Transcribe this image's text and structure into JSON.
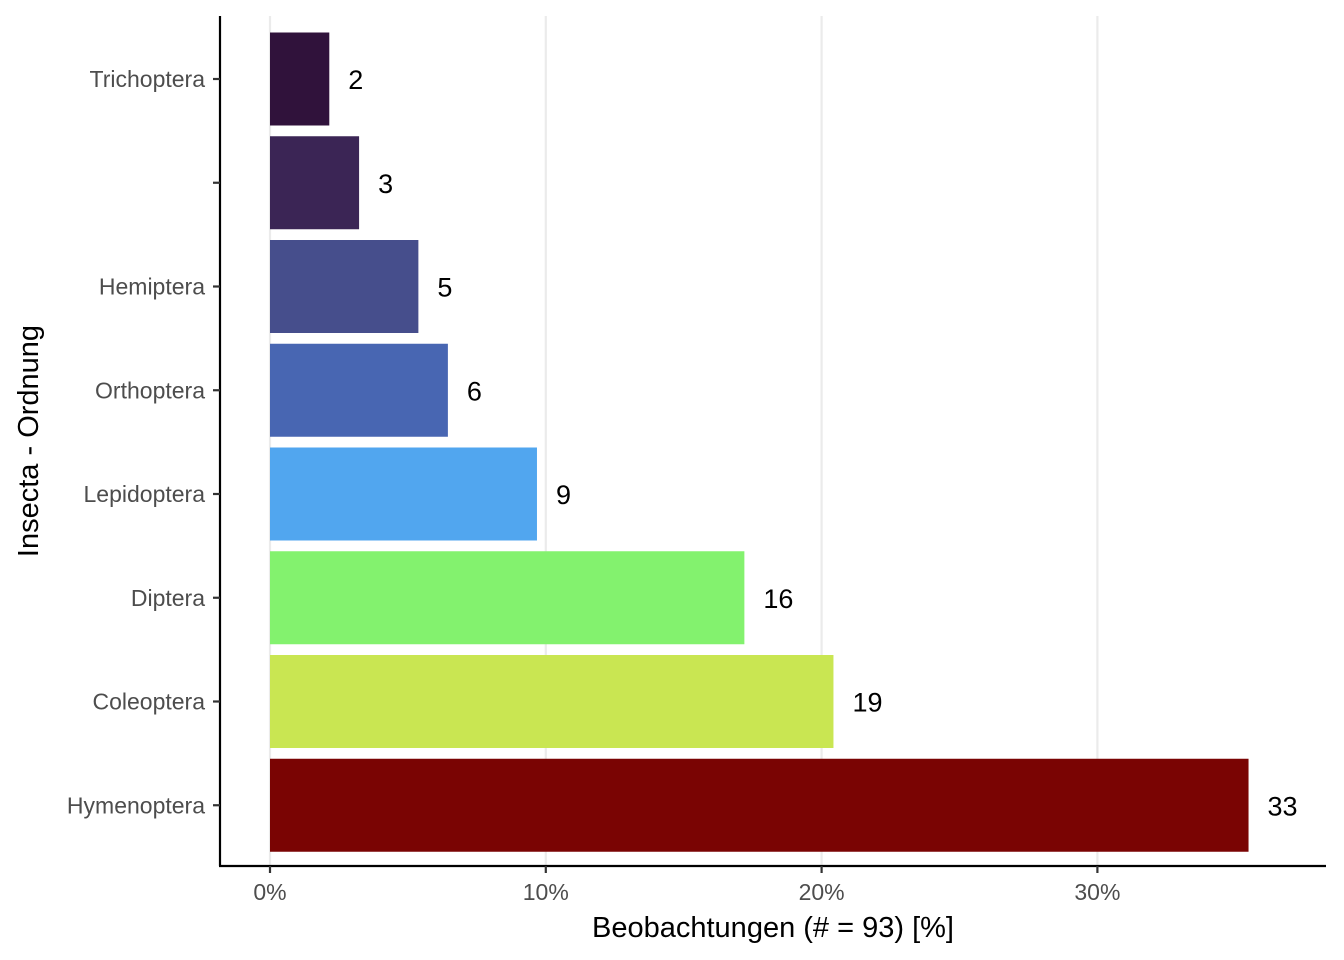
{
  "chart_data": {
    "type": "bar",
    "orientation": "horizontal",
    "categories": [
      "Trichoptera",
      "",
      "Hemiptera",
      "Orthoptera",
      "Lepidoptera",
      "Diptera",
      "Coleoptera",
      "Hymenoptera"
    ],
    "counts": [
      2,
      3,
      5,
      6,
      9,
      16,
      19,
      33
    ],
    "values_percent": [
      2.15,
      3.23,
      5.38,
      6.45,
      9.68,
      17.2,
      20.43,
      35.48
    ],
    "colors": [
      "#30123B",
      "#3B2555",
      "#464E8C",
      "#4866B2",
      "#51A6EF",
      "#83F26E",
      "#C9E652",
      "#7A0403"
    ],
    "xlabel": "Beobachtungen (# = 93) [%]",
    "ylabel": "Insecta - Ordnung",
    "x_ticks": [
      0,
      10,
      20,
      30
    ],
    "x_tick_labels": [
      "0%",
      "10%",
      "20%",
      "30%"
    ],
    "xlim": [
      -1.8,
      38.5
    ],
    "grid": "vertical major gridlines"
  }
}
